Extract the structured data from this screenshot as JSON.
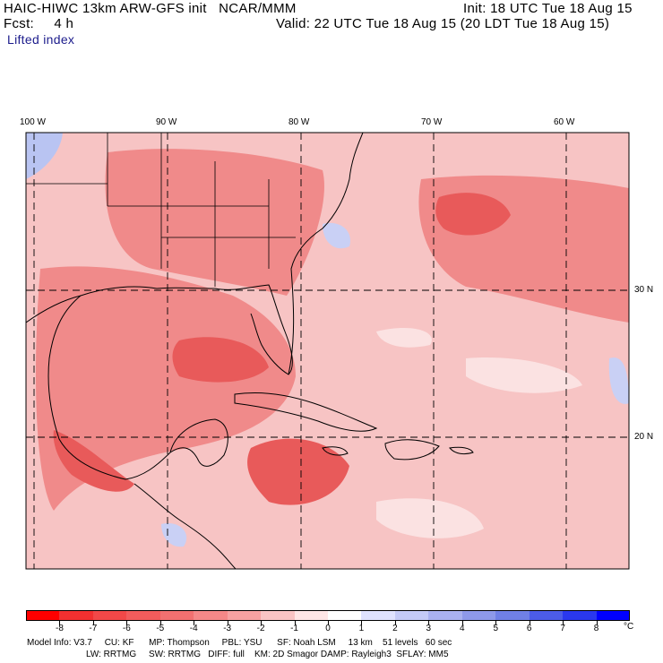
{
  "header": {
    "model_title": "HAIC-HIWC 13km ARW-GFS init   NCAR/MMM",
    "forecast": "Fcst:     4 h",
    "init": "Init: 18 UTC Tue 18 Aug 15",
    "valid": "Valid: 22 UTC Tue 18 Aug 15 (20 LDT Tue 18 Aug 15)",
    "field_name": "Lifted index"
  },
  "map": {
    "longitude_labels": [
      "100 W",
      "90 W",
      "80 W",
      "70 W",
      "60 W"
    ],
    "latitude_labels": [
      "30 N",
      "20 N"
    ],
    "colors": {
      "ocean_base": "#f7c4c4",
      "moderate": "#f08a8a",
      "strong": "#e85a5a",
      "neutral": "#fbe2e2",
      "positive": "#b9c4f2",
      "coast": "#000000",
      "grid": "#000000"
    }
  },
  "colorbar": {
    "labels": [
      "-8",
      "-7",
      "-6",
      "-5",
      "-4",
      "-3",
      "-2",
      "-1",
      "0",
      "1",
      "2",
      "3",
      "4",
      "5",
      "6",
      "7",
      "8"
    ],
    "unit": "°C",
    "colors": [
      "#ff0000",
      "#f23030",
      "#f24848",
      "#f25c5c",
      "#f27070",
      "#f58888",
      "#f7a2a2",
      "#fac4c4",
      "#ffe6e6",
      "#ffffff",
      "#dfe2ff",
      "#c4caf7",
      "#a9b1f0",
      "#8e99ea",
      "#7080e6",
      "#4c5ce8",
      "#2a38ee",
      "#0000ff"
    ]
  },
  "model_info": {
    "line1": "Model Info: V3.7     CU: KF      MP: Thompson     PBL: YSU      SF: Noah LSM     13 km    51 levels   60 sec",
    "line2": "LW: RRTMG     SW: RRTMG   DIFF: full    KM: 2D Smagor DAMP: Rayleigh3  SFLAY: MM5"
  }
}
